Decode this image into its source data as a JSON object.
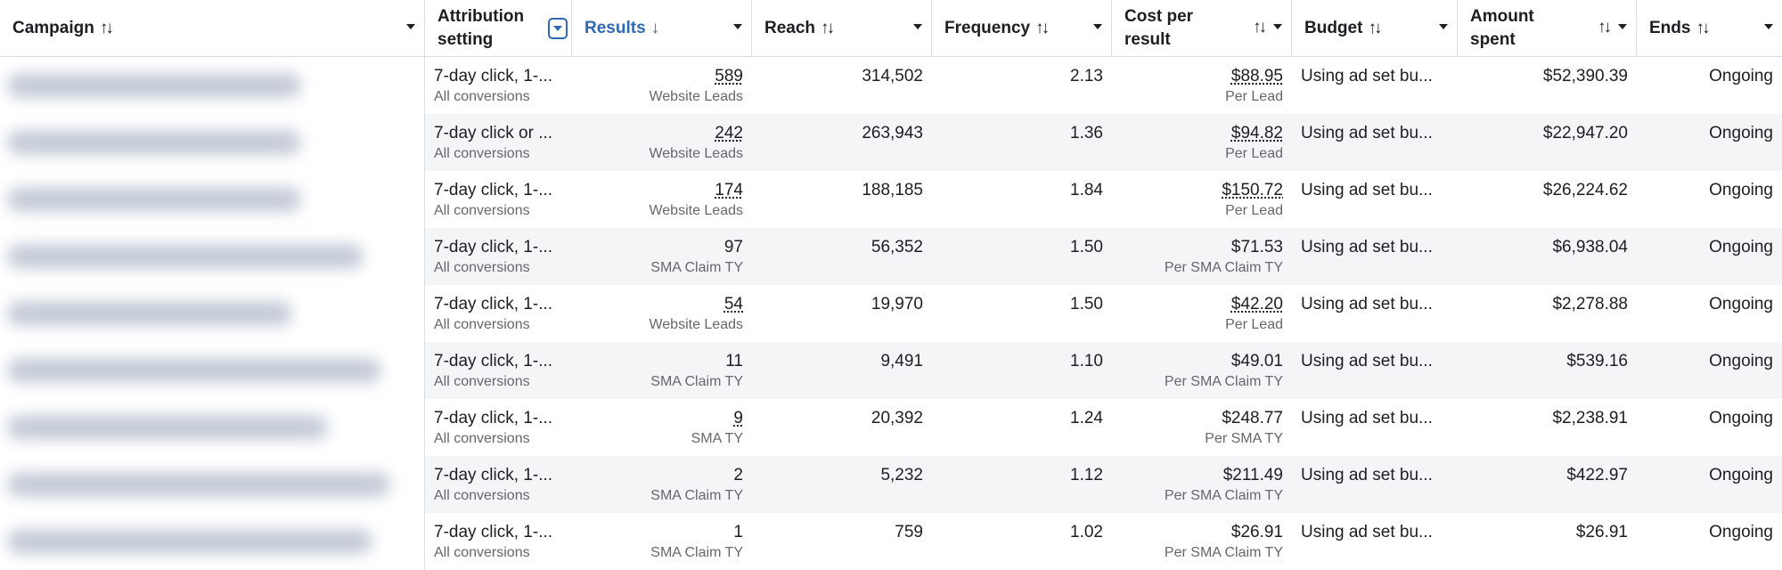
{
  "columns": {
    "campaign": "Campaign",
    "attribution_line1": "Attribution",
    "attribution_line2": "setting",
    "results": "Results",
    "reach": "Reach",
    "frequency": "Frequency",
    "cost_line1": "Cost per",
    "cost_line2": "result",
    "budget": "Budget",
    "amount_line1": "Amount",
    "amount_line2": "spent",
    "ends": "Ends"
  },
  "icons": {
    "sort": "sort-arrows-icon",
    "sort_down": "arrow-down-icon",
    "caret": "caret-down-icon",
    "filter": "filter-dropdown-icon"
  },
  "rows": [
    {
      "attribution": "7-day click, 1-...",
      "attribution_sub": "All conversions",
      "results": "589",
      "results_sub": "Website Leads",
      "reach": "314,502",
      "frequency": "2.13",
      "cost": "$88.95",
      "cost_sub": "Per Lead",
      "budget": "Using ad set bu...",
      "amount": "$52,390.39",
      "ends": "Ongoing"
    },
    {
      "attribution": "7-day click or ...",
      "attribution_sub": "All conversions",
      "results": "242",
      "results_sub": "Website Leads",
      "reach": "263,943",
      "frequency": "1.36",
      "cost": "$94.82",
      "cost_sub": "Per Lead",
      "budget": "Using ad set bu...",
      "amount": "$22,947.20",
      "ends": "Ongoing"
    },
    {
      "attribution": "7-day click, 1-...",
      "attribution_sub": "All conversions",
      "results": "174",
      "results_sub": "Website Leads",
      "reach": "188,185",
      "frequency": "1.84",
      "cost": "$150.72",
      "cost_sub": "Per Lead",
      "budget": "Using ad set bu...",
      "amount": "$26,224.62",
      "ends": "Ongoing"
    },
    {
      "attribution": "7-day click, 1-...",
      "attribution_sub": "All conversions",
      "results": "97",
      "results_sub": "SMA Claim TY",
      "reach": "56,352",
      "frequency": "1.50",
      "cost": "$71.53",
      "cost_sub": "Per SMA Claim TY",
      "budget": "Using ad set bu...",
      "amount": "$6,938.04",
      "ends": "Ongoing"
    },
    {
      "attribution": "7-day click, 1-...",
      "attribution_sub": "All conversions",
      "results": "54",
      "results_sub": "Website Leads",
      "reach": "19,970",
      "frequency": "1.50",
      "cost": "$42.20",
      "cost_sub": "Per Lead",
      "budget": "Using ad set bu...",
      "amount": "$2,278.88",
      "ends": "Ongoing"
    },
    {
      "attribution": "7-day click, 1-...",
      "attribution_sub": "All conversions",
      "results": "11",
      "results_sub": "SMA Claim TY",
      "reach": "9,491",
      "frequency": "1.10",
      "cost": "$49.01",
      "cost_sub": "Per SMA Claim TY",
      "budget": "Using ad set bu...",
      "amount": "$539.16",
      "ends": "Ongoing"
    },
    {
      "attribution": "7-day click, 1-...",
      "attribution_sub": "All conversions",
      "results": "9",
      "results_sub": "SMA TY",
      "reach": "20,392",
      "frequency": "1.24",
      "cost": "$248.77",
      "cost_sub": "Per SMA TY",
      "budget": "Using ad set bu...",
      "amount": "$2,238.91",
      "ends": "Ongoing"
    },
    {
      "attribution": "7-day click, 1-...",
      "attribution_sub": "All conversions",
      "results": "2",
      "results_sub": "SMA Claim TY",
      "reach": "5,232",
      "frequency": "1.12",
      "cost": "$211.49",
      "cost_sub": "Per SMA Claim TY",
      "budget": "Using ad set bu...",
      "amount": "$422.97",
      "ends": "Ongoing"
    },
    {
      "attribution": "7-day click, 1-...",
      "attribution_sub": "All conversions",
      "results": "1",
      "results_sub": "SMA Claim TY",
      "reach": "759",
      "frequency": "1.02",
      "cost": "$26.91",
      "cost_sub": "Per SMA Claim TY",
      "budget": "Using ad set bu...",
      "amount": "$26.91",
      "ends": "Ongoing"
    }
  ],
  "colors": {
    "accent": "#2d6ab3",
    "row_alt": "#f4f5f7",
    "border": "#dadde1"
  }
}
